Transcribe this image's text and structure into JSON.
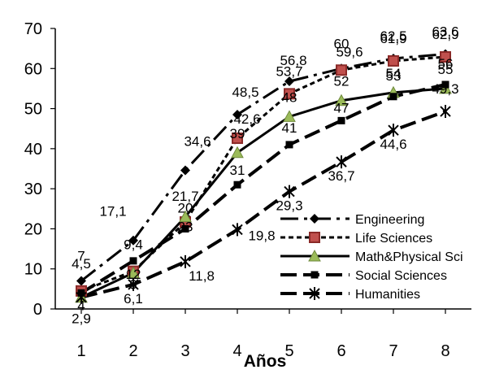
{
  "chart_data": {
    "type": "line",
    "title": "",
    "xlabel": "Años",
    "ylabel": "",
    "x": [
      1,
      2,
      3,
      4,
      5,
      6,
      7,
      8
    ],
    "ylim": [
      0,
      70
    ],
    "yticks": [
      0,
      10,
      20,
      30,
      40,
      50,
      60,
      70
    ],
    "grid": false,
    "legend_position": "bottom-right",
    "series": [
      {
        "name": "Engineering",
        "values": [
          7,
          17.1,
          34.6,
          48.5,
          56.8,
          60,
          62.5,
          63.6
        ],
        "labels": [
          "7",
          "17,1",
          "34,6",
          "48,5",
          "56,8",
          "60",
          "62,5",
          "63,6"
        ],
        "marker": "diamond",
        "dash": "long-dash-dot",
        "marker_color": "#000000"
      },
      {
        "name": "Life Sciences",
        "values": [
          4.5,
          9.4,
          21.7,
          42.6,
          53.7,
          59.6,
          61.9,
          62.9
        ],
        "labels": [
          "4,5",
          "9,4",
          "21,7",
          "42,6",
          "53,7",
          "59,6",
          "61,9",
          "62,9"
        ],
        "marker": "square",
        "dash": "dash",
        "marker_color": "#c0504d"
      },
      {
        "name": "Math&Physical Sci",
        "values": [
          2.9,
          9,
          23,
          39,
          48,
          52,
          54,
          55
        ],
        "labels": [
          "2,9",
          "9",
          "23",
          "39",
          "48",
          "52",
          "54",
          "55"
        ],
        "marker": "triangle",
        "dash": "solid",
        "marker_color": "#9bbb59"
      },
      {
        "name": "Social Sciences",
        "values": [
          4,
          12,
          20,
          31,
          41,
          47,
          53,
          56
        ],
        "labels": [
          "4",
          "12",
          "20",
          "31",
          "41",
          "47",
          "53",
          "56"
        ],
        "marker": "square-small",
        "dash": "long-dash",
        "marker_color": "#000000"
      },
      {
        "name": "Humanities",
        "values": [
          2.9,
          6.1,
          11.8,
          19.8,
          29.3,
          36.7,
          44.6,
          49.3
        ],
        "labels": [
          "",
          "6,1",
          "11,8",
          "19,8",
          "29,3",
          "36,7",
          "44,6",
          "49,3"
        ],
        "marker": "star",
        "dash": "long-dash",
        "marker_color": "#000000"
      }
    ]
  }
}
